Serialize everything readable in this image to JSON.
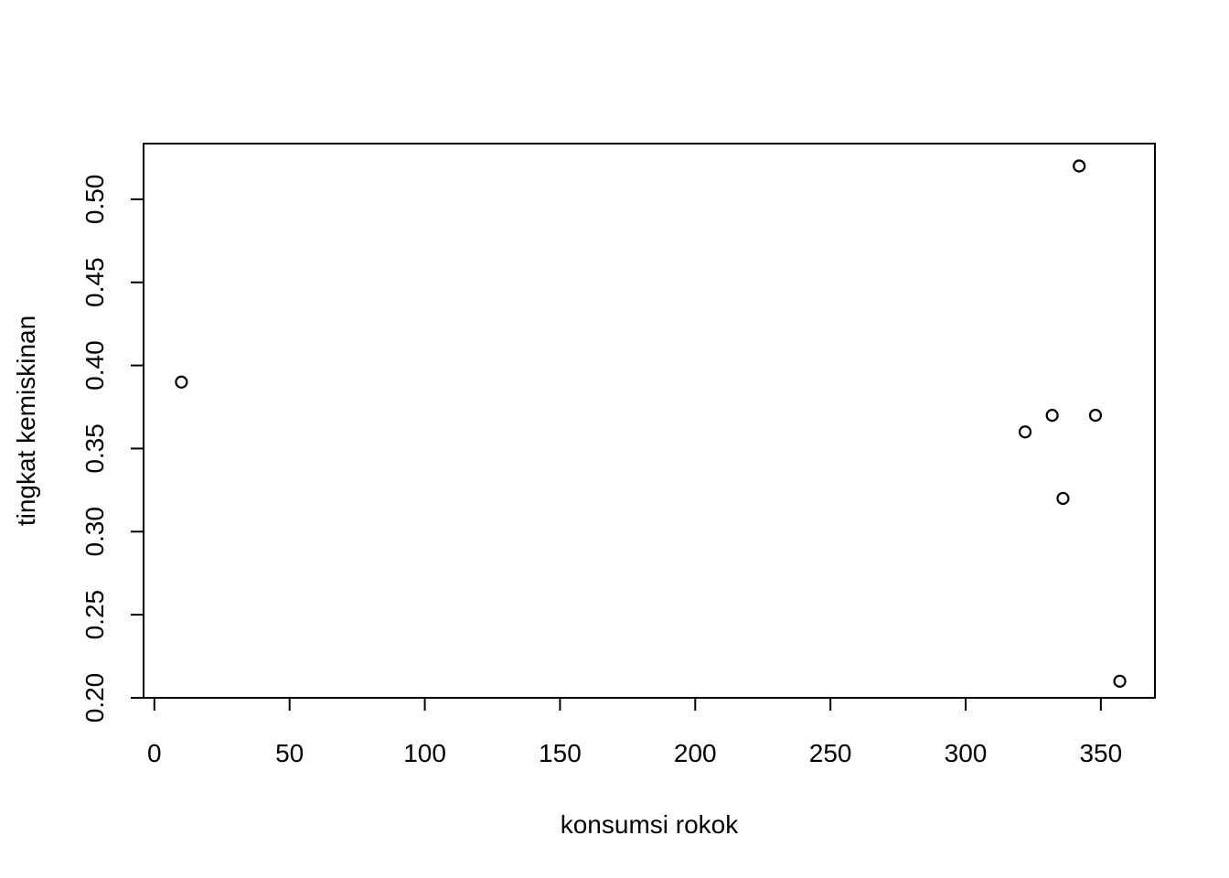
{
  "chart_data": {
    "type": "scatter",
    "title": "",
    "xlabel": "konsumsi rokok",
    "ylabel": "tingkat kemiskinan",
    "xlim": [
      -4,
      370
    ],
    "ylim": [
      0.2,
      0.5335
    ],
    "x_ticks": [
      0,
      50,
      100,
      150,
      200,
      250,
      300,
      350
    ],
    "x_tick_labels": [
      "0",
      "50",
      "100",
      "150",
      "200",
      "250",
      "300",
      "350"
    ],
    "y_ticks": [
      0.2,
      0.25,
      0.3,
      0.35,
      0.4,
      0.45,
      0.5
    ],
    "y_tick_labels": [
      "0.20",
      "0.25",
      "0.30",
      "0.35",
      "0.40",
      "0.45",
      "0.50"
    ],
    "grid": false,
    "legend": "none",
    "marker": "open-circle",
    "marker_color": "#000000",
    "points": [
      {
        "x": 10,
        "y": 0.39
      },
      {
        "x": 322,
        "y": 0.36
      },
      {
        "x": 332,
        "y": 0.37
      },
      {
        "x": 336,
        "y": 0.32
      },
      {
        "x": 342,
        "y": 0.52
      },
      {
        "x": 348,
        "y": 0.37
      },
      {
        "x": 357,
        "y": 0.21
      }
    ]
  }
}
